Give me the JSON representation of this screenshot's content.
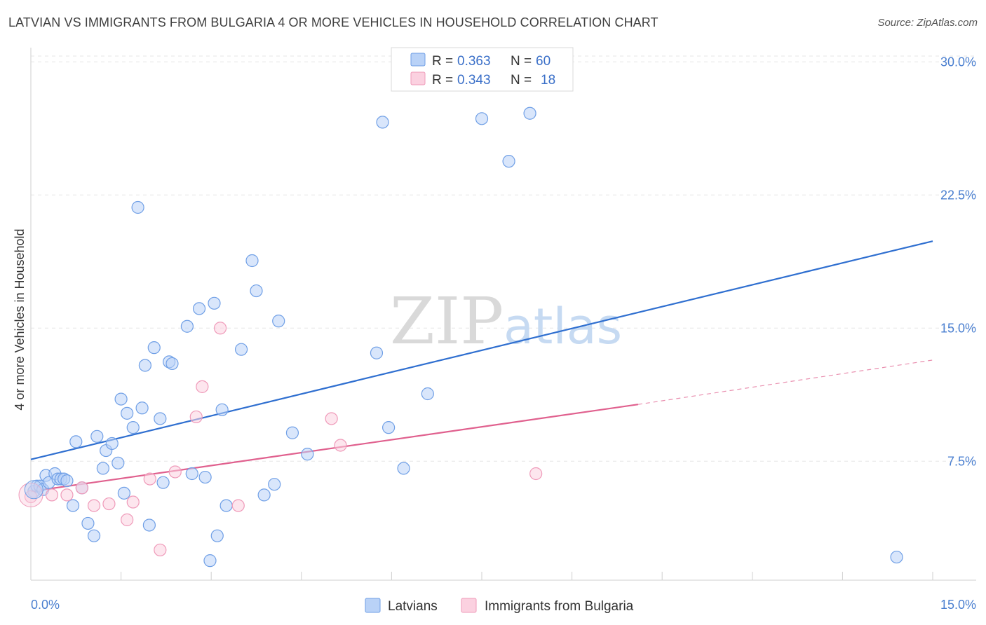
{
  "title": "LATVIAN VS IMMIGRANTS FROM BULGARIA 4 OR MORE VEHICLES IN HOUSEHOLD CORRELATION CHART",
  "source": "Source: ZipAtlas.com",
  "watermark": {
    "zip": "ZIP",
    "atlas": "atlas"
  },
  "legend_top": [
    {
      "r_label": "R =",
      "r_value": "0.363",
      "n_label": "N =",
      "n_value": "60",
      "color": "#6f9fe6",
      "fill": "#b9d2f7"
    },
    {
      "r_label": "R =",
      "r_value": "0.343",
      "n_label": "N =",
      "n_value": "18",
      "color": "#ef9ab9",
      "fill": "#fbd1e0"
    }
  ],
  "legend_bottom": [
    {
      "label": "Latvians",
      "color": "#6f9fe6",
      "fill": "#b9d2f7"
    },
    {
      "label": "Immigrants from Bulgaria",
      "color": "#ef9ab9",
      "fill": "#fbd1e0"
    }
  ],
  "chart_data": {
    "type": "scatter",
    "ylabel": "4 or more Vehicles in Household",
    "xlim": [
      0,
      15
    ],
    "ylim": [
      0.8,
      30.8
    ],
    "x_tick_labels": [
      "0.0%",
      "15.0%"
    ],
    "y_ticks": [
      7.5,
      15.0,
      22.5,
      30.0
    ],
    "y_tick_labels": [
      "7.5%",
      "15.0%",
      "22.5%",
      "30.0%"
    ],
    "grid": true,
    "series": [
      {
        "name": "Latvians",
        "color": "#6f9fe6",
        "fill": "#b9d2f7",
        "line_color": "#2f6fd0",
        "trend": {
          "x": [
            0,
            15
          ],
          "y": [
            7.6,
            19.9
          ]
        },
        "points": [
          [
            0.05,
            5.8
          ],
          [
            0.1,
            6.1
          ],
          [
            0.15,
            6.1
          ],
          [
            0.2,
            5.9
          ],
          [
            0.25,
            6.7
          ],
          [
            0.3,
            6.3
          ],
          [
            0.4,
            6.8
          ],
          [
            0.45,
            6.5
          ],
          [
            0.5,
            6.5
          ],
          [
            0.55,
            6.5
          ],
          [
            0.6,
            6.4
          ],
          [
            0.7,
            5.0
          ],
          [
            0.75,
            8.6
          ],
          [
            0.85,
            6.0
          ],
          [
            0.95,
            4.0
          ],
          [
            1.05,
            3.3
          ],
          [
            1.1,
            8.9
          ],
          [
            1.2,
            7.1
          ],
          [
            1.25,
            8.1
          ],
          [
            1.35,
            8.5
          ],
          [
            1.45,
            7.4
          ],
          [
            1.5,
            11.0
          ],
          [
            1.55,
            5.7
          ],
          [
            1.6,
            10.2
          ],
          [
            1.7,
            9.4
          ],
          [
            1.78,
            21.8
          ],
          [
            1.85,
            10.5
          ],
          [
            1.9,
            12.9
          ],
          [
            1.97,
            3.9
          ],
          [
            2.05,
            13.9
          ],
          [
            2.15,
            9.9
          ],
          [
            2.2,
            6.3
          ],
          [
            2.3,
            13.1
          ],
          [
            2.35,
            13.0
          ],
          [
            2.6,
            15.1
          ],
          [
            2.68,
            6.8
          ],
          [
            2.8,
            16.1
          ],
          [
            2.9,
            6.6
          ],
          [
            2.98,
            1.9
          ],
          [
            3.05,
            16.4
          ],
          [
            3.1,
            3.3
          ],
          [
            3.18,
            10.4
          ],
          [
            3.25,
            5.0
          ],
          [
            3.5,
            13.8
          ],
          [
            3.68,
            18.8
          ],
          [
            3.75,
            17.1
          ],
          [
            3.88,
            5.6
          ],
          [
            4.05,
            6.2
          ],
          [
            4.12,
            15.4
          ],
          [
            4.35,
            9.1
          ],
          [
            4.6,
            7.9
          ],
          [
            5.75,
            13.6
          ],
          [
            5.85,
            26.6
          ],
          [
            5.95,
            9.4
          ],
          [
            6.2,
            7.1
          ],
          [
            6.6,
            11.3
          ],
          [
            7.5,
            26.8
          ],
          [
            7.95,
            24.4
          ],
          [
            8.3,
            27.1
          ],
          [
            14.4,
            2.1
          ]
        ]
      },
      {
        "name": "Immigrants from Bulgaria",
        "color": "#ef9ab9",
        "fill": "#fbd1e0",
        "line_color": "#e0608e",
        "trend": {
          "x": [
            0,
            10.1
          ],
          "y": [
            5.8,
            10.7
          ]
        },
        "trend_dashed": {
          "x": [
            10.1,
            15
          ],
          "y": [
            10.7,
            13.2
          ]
        },
        "points": [
          [
            0.0,
            5.5
          ],
          [
            0.35,
            5.6
          ],
          [
            0.6,
            5.6
          ],
          [
            0.85,
            6.0
          ],
          [
            1.05,
            5.0
          ],
          [
            1.3,
            5.1
          ],
          [
            1.6,
            4.2
          ],
          [
            1.7,
            5.2
          ],
          [
            1.98,
            6.5
          ],
          [
            2.15,
            2.5
          ],
          [
            2.4,
            6.9
          ],
          [
            2.75,
            10.0
          ],
          [
            2.85,
            11.7
          ],
          [
            3.15,
            15.0
          ],
          [
            3.45,
            5.0
          ],
          [
            5.0,
            9.9
          ],
          [
            5.15,
            8.4
          ],
          [
            8.4,
            6.8
          ]
        ]
      }
    ]
  }
}
